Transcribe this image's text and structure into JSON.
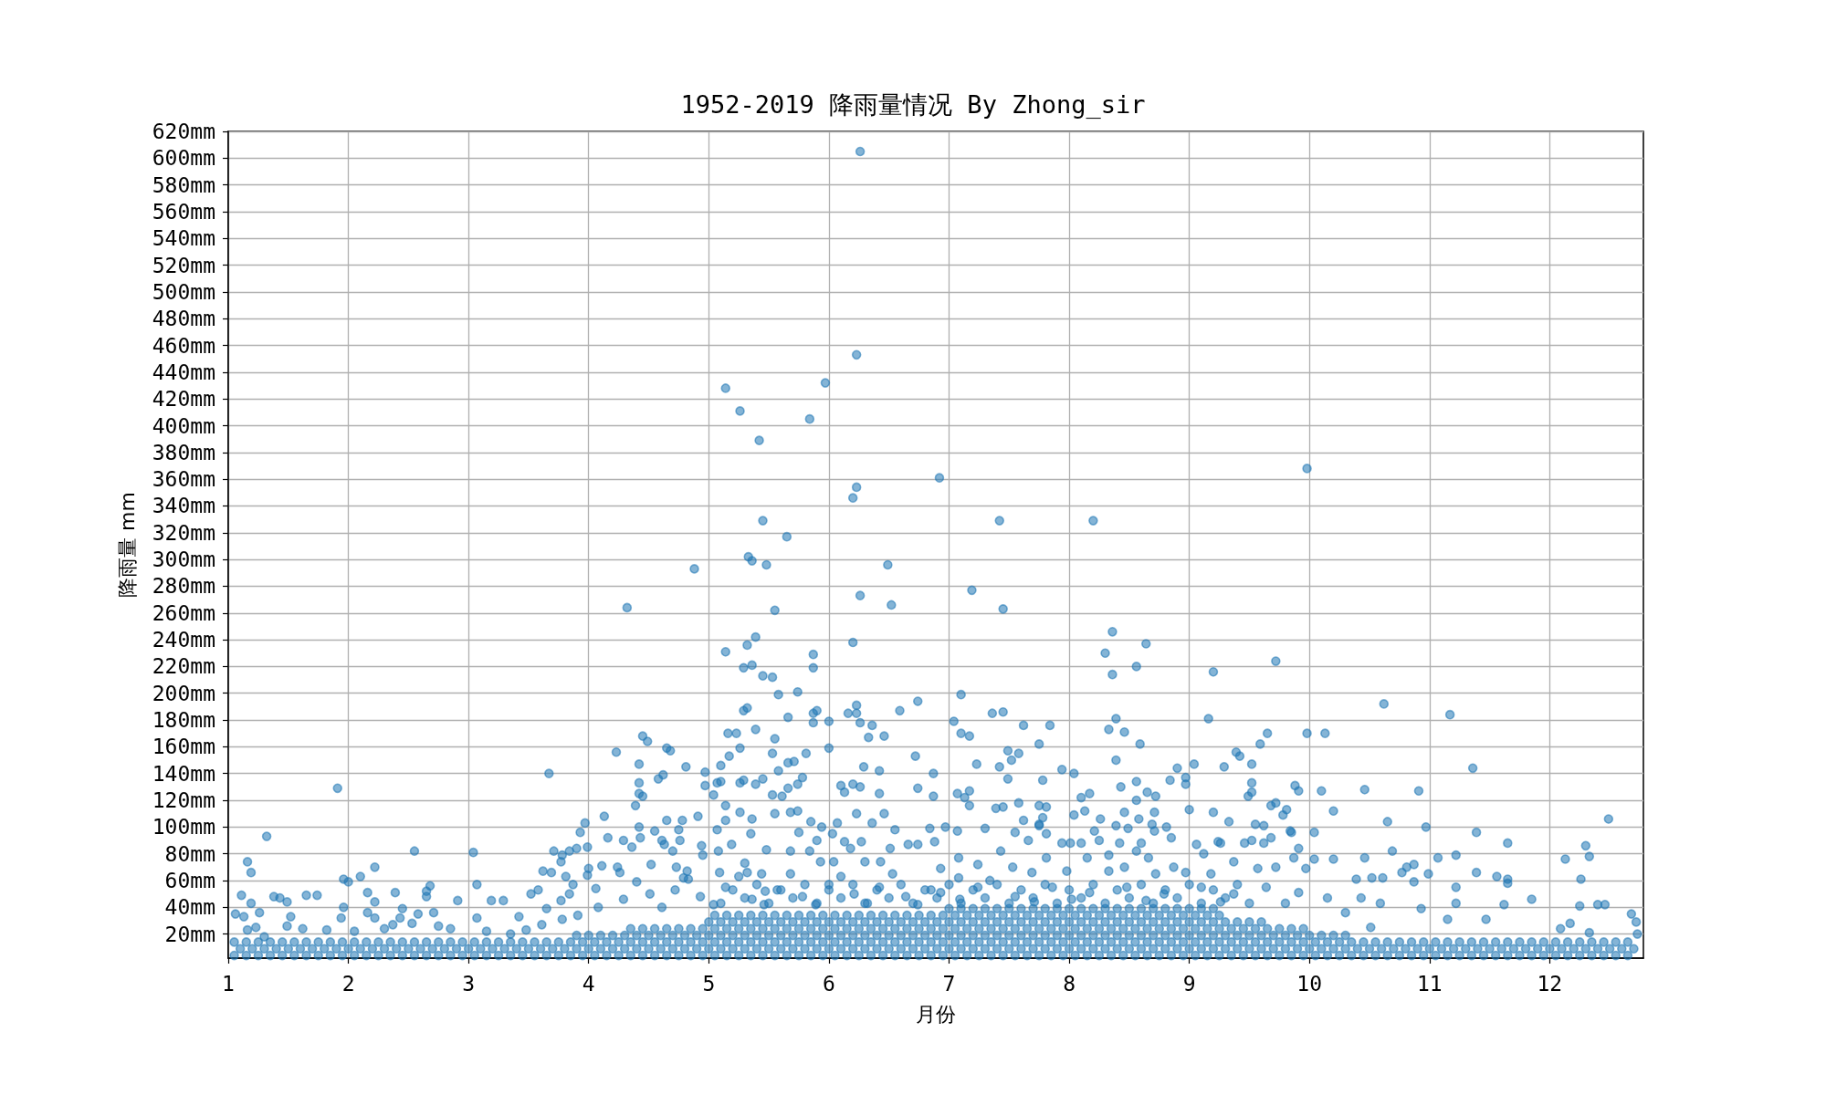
{
  "chart_data": {
    "type": "scatter",
    "title": "1952-2019 降雨量情况 By Zhong_sir",
    "xlabel": "月份",
    "ylabel": "降雨量 mm",
    "color": "#1f77b4",
    "marker": "circle",
    "grid": true,
    "xlim": [
      1,
      12.78
    ],
    "ylim": [
      2,
      620
    ],
    "xticks": [
      1,
      2,
      3,
      4,
      5,
      6,
      7,
      8,
      9,
      10,
      11,
      12
    ],
    "yticks": [
      {
        "value": 20,
        "label": "20mm"
      },
      {
        "value": 40,
        "label": "40mm"
      },
      {
        "value": 60,
        "label": "60mm"
      },
      {
        "value": 80,
        "label": "80mm"
      },
      {
        "value": 100,
        "label": "100mm"
      },
      {
        "value": 120,
        "label": "120mm"
      },
      {
        "value": 140,
        "label": "140mm"
      },
      {
        "value": 160,
        "label": "160mm"
      },
      {
        "value": 180,
        "label": "180mm"
      },
      {
        "value": 200,
        "label": "200mm"
      },
      {
        "value": 220,
        "label": "220mm"
      },
      {
        "value": 240,
        "label": "240mm"
      },
      {
        "value": 260,
        "label": "260mm"
      },
      {
        "value": 280,
        "label": "280mm"
      },
      {
        "value": 300,
        "label": "300mm"
      },
      {
        "value": 320,
        "label": "320mm"
      },
      {
        "value": 340,
        "label": "340mm"
      },
      {
        "value": 360,
        "label": "360mm"
      },
      {
        "value": 380,
        "label": "380mm"
      },
      {
        "value": 400,
        "label": "400mm"
      },
      {
        "value": 420,
        "label": "420mm"
      },
      {
        "value": 440,
        "label": "440mm"
      },
      {
        "value": 460,
        "label": "460mm"
      },
      {
        "value": 480,
        "label": "480mm"
      },
      {
        "value": 500,
        "label": "500mm"
      },
      {
        "value": 520,
        "label": "520mm"
      },
      {
        "value": 540,
        "label": "540mm"
      },
      {
        "value": 560,
        "label": "560mm"
      },
      {
        "value": 580,
        "label": "580mm"
      },
      {
        "value": 600,
        "label": "600mm"
      },
      {
        "value": 620,
        "label": "620mm"
      }
    ],
    "x": [
      6.26,
      6.23,
      5.14,
      5.97,
      5.26,
      5.84,
      5.42,
      6.92,
      6.23,
      6.2,
      5.45,
      5.65,
      7.42,
      8.2,
      9.98,
      5.33,
      5.36,
      5.48,
      4.88,
      6.49,
      4.32,
      5.55,
      6.26,
      6.52,
      5.39,
      5.32,
      5.14,
      6.2,
      5.29,
      5.36,
      5.87,
      5.87,
      5.45,
      5.53,
      5.58,
      5.74,
      5.29,
      5.32,
      5.66,
      5.87,
      5.9,
      6.0,
      6.23,
      6.23,
      6.16,
      6.26,
      6.36,
      6.33,
      6.46,
      6.59,
      6.74,
      6.72,
      6.87,
      6.74,
      6.87,
      6.42,
      6.42,
      6.46,
      6.23,
      6.29,
      6.26,
      6.2,
      6.1,
      6.13,
      6.0,
      5.87,
      5.81,
      5.78,
      5.74,
      5.71,
      5.66,
      5.58,
      5.66,
      5.55,
      5.53,
      5.39,
      5.26,
      5.16,
      5.23,
      5.17,
      5.1,
      4.97,
      4.97,
      4.81,
      5.1,
      5.07,
      5.26,
      5.29,
      5.39,
      5.45,
      5.53,
      5.61,
      5.04,
      4.65,
      4.68,
      4.45,
      4.49,
      4.23,
      4.42,
      4.62,
      4.58,
      4.42,
      4.42,
      4.45,
      4.39,
      4.13,
      3.97,
      3.93,
      3.67,
      1.91,
      1.32,
      4.42,
      4.65,
      4.78,
      4.91,
      4.75,
      5.14,
      5.14,
      5.26,
      5.36,
      5.55,
      5.68,
      5.74,
      5.85,
      5.94,
      6.07,
      6.36,
      6.55,
      6.84,
      7.19,
      7.45,
      8.36,
      8.64,
      8.3,
      8.36,
      8.56,
      9.2,
      9.72,
      7.1,
      7.04,
      7.36,
      7.45,
      7.62,
      7.84,
      7.1,
      7.17,
      7.75,
      8.39,
      8.33,
      8.46,
      8.59,
      9.16,
      9.65,
      9.98,
      10.13,
      9.59,
      9.39,
      9.42,
      7.49,
      7.58,
      7.52,
      7.23,
      7.42,
      7.49,
      7.78,
      7.94,
      8.04,
      8.39,
      8.56,
      8.43,
      8.65,
      8.72,
      8.9,
      9.04,
      8.97,
      8.84,
      8.97,
      9.29,
      9.52,
      9.52,
      9.52,
      9.49,
      9.88,
      9.91,
      10.1,
      10.46,
      10.91,
      11.36,
      10.62,
      11.17,
      12.49,
      10.65,
      10.97,
      11.39,
      10.2,
      9.72,
      9.68,
      9.81,
      9.78,
      9.55,
      9.62,
      9.85,
      10.04,
      9.33,
      9.2,
      9.0,
      8.71,
      8.58,
      8.69,
      8.81,
      8.49,
      8.39,
      8.56,
      8.46,
      8.26,
      8.17,
      8.1,
      8.13,
      8.04,
      7.81,
      7.75,
      7.78,
      7.75,
      7.62,
      7.58,
      7.45,
      7.39,
      7.17,
      7.07,
      7.17,
      7.13,
      7.3,
      7.55,
      7.81,
      6.97,
      1.16,
      1.19,
      1.11,
      1.06,
      1.13,
      1.19,
      1.26,
      1.16,
      1.23,
      1.38,
      1.43,
      1.49,
      1.52,
      1.49,
      1.65,
      1.74,
      1.62,
      1.94,
      1.96,
      2.0,
      2.1,
      2.22,
      1.96,
      2.16,
      2.22,
      2.16,
      2.22,
      2.39,
      2.45,
      2.43,
      2.55,
      2.65,
      2.68,
      2.65,
      2.71,
      2.58,
      2.91,
      3.04,
      3.07,
      3.07,
      3.19,
      3.29,
      3.42,
      3.52,
      3.58,
      3.62,
      3.69,
      3.71,
      3.78,
      3.81,
      3.77,
      3.84,
      3.9,
      3.87,
      3.99,
      3.99,
      4.0,
      3.84,
      3.77,
      3.65,
      4.06,
      4.16,
      4.11,
      4.24,
      4.26,
      4.29,
      4.36,
      4.43,
      4.52,
      4.55,
      4.61,
      4.63,
      4.7,
      4.76,
      4.73,
      4.79,
      4.82,
      4.94,
      4.95,
      5.08,
      5.07,
      5.09,
      5.19,
      5.3,
      5.32,
      5.35,
      5.48,
      5.44,
      5.47,
      5.68,
      5.75,
      5.84,
      5.9,
      5.93,
      6.03,
      6.04,
      6.13,
      6.18,
      6.27,
      6.3,
      6.43,
      6.51,
      6.66,
      6.74,
      6.88,
      4.08,
      4.29,
      4.51,
      4.72,
      4.93,
      5.14,
      5.36,
      5.57,
      5.78,
      6.0,
      6.21,
      6.42,
      6.64,
      6.85,
      4.4,
      4.83,
      5.25,
      5.68,
      6.1,
      6.53,
      4.61,
      5.04,
      5.46,
      5.89,
      6.32,
      6.74,
      3.61,
      3.78,
      3.91,
      3.48,
      11.65,
      12.3,
      12.33,
      12.13,
      11.07,
      11.22,
      10.69,
      10.46,
      10.2,
      10.04,
      10.81,
      10.87,
      10.77,
      10.99,
      11.39,
      11.56,
      11.65,
      11.22,
      11.85,
      11.65,
      10.39,
      10.52,
      10.61,
      10.87,
      10.93,
      11.22,
      11.62,
      12.26,
      12.25,
      12.4,
      12.46,
      12.68,
      12.72,
      12.73,
      12.09,
      12.17,
      12.33,
      11.47,
      11.15,
      10.43,
      10.59,
      10.51,
      10.3,
      10.15,
      7.07,
      7.66,
      7.75,
      7.94,
      8.01,
      8.1,
      8.21,
      8.25,
      8.42,
      8.6,
      8.71,
      8.85,
      9.06,
      9.26,
      9.46,
      9.52,
      9.62,
      9.68,
      9.84,
      9.91,
      7.43,
      7.24,
      7.08,
      6.93,
      7.53,
      7.81,
      7.69,
      7.98,
      8.15,
      8.33,
      8.46,
      8.56,
      8.66,
      8.87,
      8.97,
      9.12,
      9.24,
      9.37,
      9.57,
      9.72,
      9.87,
      9.97,
      9.18,
      8.72,
      8.33,
      7.34,
      7.08,
      6.93,
      7.24,
      7.55,
      7.86,
      8.17,
      8.48,
      8.79,
      9.1,
      9.37,
      9.64,
      9.91,
      7.09,
      7.71,
      8.02,
      8.64,
      9.26,
      9.8,
      1.82,
      2.05,
      2.3,
      2.75,
      2.85,
      3.15,
      3.35,
      2.53,
      2.37,
      1.3,
      5.1,
      5.3,
      5.5,
      5.7,
      5.9,
      6.1,
      6.3,
      6.5,
      6.7,
      6.9,
      7.1,
      7.3,
      7.5,
      7.7,
      7.9,
      8.1,
      8.3,
      8.5,
      8.7,
      8.9,
      9.1,
      9.3,
      9.5,
      5.2,
      5.4,
      5.6,
      5.8,
      6.0,
      6.2,
      6.4,
      6.6,
      6.8,
      7.0,
      7.2,
      7.4,
      7.6,
      7.8,
      8.0,
      8.2,
      8.4,
      8.6,
      8.8,
      9.0,
      9.2,
      9.4,
      1.05,
      1.15,
      1.25,
      1.35,
      1.45,
      1.55,
      1.65,
      1.75,
      1.85,
      1.95,
      2.05,
      2.15,
      2.25,
      2.35,
      2.45,
      2.55,
      2.65,
      2.75,
      2.85,
      2.95,
      3.05,
      3.15,
      3.25,
      3.35,
      3.45,
      3.55,
      3.65,
      3.75,
      3.85,
      3.95,
      4.05,
      4.15,
      4.25,
      4.35,
      4.45,
      4.55,
      4.65,
      4.75,
      4.85,
      4.95,
      5.05,
      5.15,
      5.25,
      5.35,
      5.45,
      5.55,
      5.65,
      5.75,
      5.85,
      5.95,
      6.05,
      6.15,
      6.25,
      6.35,
      6.45,
      6.55,
      6.65,
      6.75,
      6.85,
      6.95,
      7.05,
      7.15,
      7.25,
      7.35,
      7.45,
      7.55,
      7.65,
      7.75,
      7.85,
      7.95,
      8.05,
      8.15,
      8.25,
      8.35,
      8.45,
      8.55,
      8.65,
      8.75,
      8.85,
      8.95,
      9.05,
      9.15,
      9.25,
      9.35,
      9.45,
      9.55,
      9.65,
      9.75,
      9.85,
      9.95,
      10.05,
      10.15,
      10.25,
      10.35,
      10.45,
      10.55,
      10.65,
      10.75,
      10.85,
      10.95,
      11.05,
      11.15,
      11.25,
      11.35,
      11.45,
      11.55,
      11.65,
      11.75,
      11.85,
      11.95,
      12.05,
      12.15,
      12.25,
      12.35,
      12.45,
      12.55,
      12.65,
      1.1,
      1.2,
      1.3,
      1.4,
      1.5,
      1.6,
      1.7,
      1.8,
      1.9,
      2.0,
      2.1,
      2.2,
      2.3,
      2.4,
      2.5,
      2.6,
      2.7,
      2.8,
      2.9,
      3.0,
      3.1,
      3.2,
      3.3,
      3.4,
      3.5,
      3.6,
      3.7,
      3.8,
      3.9,
      4.0,
      4.1,
      4.2,
      4.3,
      4.4,
      4.5,
      4.6,
      4.7,
      4.8,
      4.9,
      5.0,
      5.1,
      5.2,
      5.3,
      5.4,
      5.5,
      5.6,
      5.7,
      5.8,
      5.9,
      6.0,
      6.1,
      6.2,
      6.3,
      6.4,
      6.5,
      6.6,
      6.7,
      6.8,
      6.9,
      7.0,
      7.1,
      7.2,
      7.3,
      7.4,
      7.5,
      7.6,
      7.7,
      7.8,
      7.9,
      8.0,
      8.1,
      8.2,
      8.3,
      8.4,
      8.5,
      8.6,
      8.7,
      8.8,
      8.9,
      9.0,
      9.1,
      9.2,
      9.3,
      9.4,
      9.5,
      9.6,
      9.7,
      9.8,
      9.9,
      10.0,
      10.1,
      10.2,
      10.3,
      10.4,
      10.5,
      10.6,
      10.7,
      10.8,
      10.9,
      11.0,
      11.1,
      11.2,
      11.3,
      11.4,
      11.5,
      11.6,
      11.7,
      11.8,
      11.9,
      12.0,
      12.1,
      12.2,
      12.3,
      12.4,
      12.5,
      12.6,
      12.7,
      1.05,
      1.15,
      1.25,
      1.35,
      1.45,
      1.55,
      1.65,
      1.75,
      1.85,
      1.95,
      2.05,
      2.15,
      2.25,
      2.35,
      2.45,
      2.55,
      2.65,
      2.75,
      2.85,
      2.95,
      3.05,
      3.15,
      3.25,
      3.35,
      3.45,
      3.55,
      3.65,
      3.75,
      3.85,
      3.95,
      4.05,
      4.15,
      4.25,
      4.35,
      4.45,
      4.55,
      4.65,
      4.75,
      4.85,
      4.95,
      5.05,
      5.15,
      5.25,
      5.35,
      5.45,
      5.55,
      5.65,
      5.75,
      5.85,
      5.95,
      6.05,
      6.15,
      6.25,
      6.35,
      6.45,
      6.55,
      6.65,
      6.75,
      6.85,
      6.95,
      7.05,
      7.15,
      7.25,
      7.35,
      7.45,
      7.55,
      7.65,
      7.75,
      7.85,
      7.95,
      8.05,
      8.15,
      8.25,
      8.35,
      8.45,
      8.55,
      8.65,
      8.75,
      8.85,
      8.95,
      9.05,
      9.15,
      9.25,
      9.35,
      9.45,
      9.55,
      9.65,
      9.75,
      9.85,
      9.95,
      10.05,
      10.15,
      10.25,
      10.35,
      10.45,
      10.55,
      10.65,
      10.75,
      10.85,
      10.95,
      11.05,
      11.15,
      11.25,
      11.35,
      11.45,
      11.55,
      11.65,
      11.75,
      11.85,
      11.95,
      12.05,
      12.15,
      12.25,
      12.35,
      12.45,
      12.55,
      12.65,
      3.9,
      4.0,
      4.1,
      4.2,
      4.3,
      4.4,
      4.5,
      4.6,
      4.7,
      4.8,
      4.9,
      5.0,
      5.1,
      5.2,
      5.3,
      5.4,
      5.5,
      5.6,
      5.7,
      5.8,
      5.9,
      6.0,
      6.1,
      6.2,
      6.3,
      6.4,
      6.5,
      6.6,
      6.7,
      6.8,
      6.9,
      7.0,
      7.1,
      7.2,
      7.3,
      7.4,
      7.5,
      7.6,
      7.7,
      7.8,
      7.9,
      8.0,
      8.1,
      8.2,
      8.3,
      8.4,
      8.5,
      8.6,
      8.7,
      8.8,
      8.9,
      9.0,
      9.1,
      9.2,
      9.3,
      9.4,
      9.5,
      9.6,
      9.7,
      9.8,
      9.9,
      10.0,
      10.1,
      10.2,
      10.3,
      4.35,
      4.45,
      4.55,
      4.65,
      4.75,
      4.85,
      4.95,
      5.05,
      5.15,
      5.25,
      5.35,
      5.45,
      5.55,
      5.65,
      5.75,
      5.85,
      5.95,
      6.05,
      6.15,
      6.25,
      6.35,
      6.45,
      6.55,
      6.65,
      6.75,
      6.85,
      6.95,
      7.05,
      7.15,
      7.25,
      7.35,
      7.45,
      7.55,
      7.65,
      7.75,
      7.85,
      7.95,
      8.05,
      8.15,
      8.25,
      8.35,
      8.45,
      8.55,
      8.65,
      8.75,
      8.85,
      8.95,
      9.05,
      9.15,
      9.25,
      9.35,
      9.45,
      9.55,
      9.65,
      9.75,
      9.85,
      9.95,
      5.0,
      5.1,
      5.2,
      5.3,
      5.4,
      5.5,
      5.6,
      5.7,
      5.8,
      5.9,
      6.0,
      6.1,
      6.2,
      6.3,
      6.4,
      6.5,
      6.6,
      6.7,
      6.8,
      6.9,
      7.0,
      7.1,
      7.2,
      7.3,
      7.4,
      7.5,
      7.6,
      7.7,
      7.8,
      7.9,
      8.0,
      8.1,
      8.2,
      8.3,
      8.4,
      8.5,
      8.6,
      8.7,
      8.8,
      8.9,
      9.0,
      9.1,
      9.2,
      9.3,
      9.4,
      9.5,
      9.6,
      5.05,
      5.15,
      5.25,
      5.35,
      5.45,
      5.55,
      5.65,
      5.75,
      5.85,
      5.95,
      6.05,
      6.15,
      6.25,
      6.35,
      6.45,
      6.55,
      6.65,
      6.75,
      6.85,
      6.95,
      7.05,
      7.15,
      7.25,
      7.35,
      7.45,
      7.55,
      7.65,
      7.75,
      7.85,
      7.95,
      8.05,
      8.15,
      8.25,
      8.35,
      8.45,
      8.55,
      8.65,
      8.75,
      8.85,
      8.95,
      9.05,
      9.15,
      9.25,
      7.0,
      7.1,
      7.2,
      7.3,
      7.4,
      7.5,
      7.6,
      7.7,
      7.8,
      7.9,
      8.0,
      8.1,
      8.2,
      8.3,
      8.4,
      8.5,
      8.6,
      8.7,
      8.8,
      8.9,
      9.0,
      9.1,
      9.2
    ],
    "values": [
      605,
      453,
      428,
      432,
      411,
      405,
      389,
      361,
      354,
      346,
      329,
      317,
      329,
      329,
      368,
      302,
      299,
      296,
      293,
      296,
      264,
      262,
      273,
      266,
      242,
      236,
      231,
      238,
      219,
      221,
      229,
      219,
      213,
      212,
      199,
      201,
      187,
      189,
      182,
      185,
      187,
      179,
      191,
      185,
      185,
      178,
      176,
      167,
      168,
      187,
      194,
      153,
      140,
      129,
      123,
      142,
      125,
      110,
      110,
      145,
      130,
      132,
      131,
      126,
      159,
      178,
      155,
      137,
      132,
      149,
      148,
      142,
      129,
      166,
      155,
      173,
      159,
      170,
      170,
      153,
      146,
      141,
      131,
      145,
      134,
      133,
      133,
      135,
      132,
      136,
      124,
      123,
      124,
      159,
      157,
      168,
      164,
      156,
      147,
      139,
      136,
      133,
      125,
      123,
      116,
      108,
      103,
      96,
      140,
      129,
      93,
      100,
      105,
      105,
      108,
      98,
      116,
      105,
      111,
      106,
      110,
      111,
      112,
      104,
      100,
      103,
      103,
      98,
      99,
      277,
      263,
      246,
      237,
      230,
      214,
      220,
      216,
      224,
      199,
      179,
      185,
      186,
      176,
      176,
      170,
      168,
      162,
      181,
      173,
      171,
      162,
      181,
      170,
      170,
      170,
      162,
      156,
      153,
      157,
      155,
      150,
      147,
      145,
      136,
      135,
      143,
      140,
      150,
      134,
      130,
      126,
      123,
      144,
      147,
      137,
      135,
      132,
      145,
      147,
      133,
      126,
      123,
      131,
      127,
      127,
      128,
      127,
      144,
      192,
      184,
      106,
      104,
      100,
      96,
      112,
      118,
      116,
      113,
      109,
      102,
      101,
      96,
      96,
      104,
      111,
      113,
      111,
      106,
      102,
      100,
      99,
      101,
      120,
      111,
      106,
      125,
      122,
      112,
      109,
      115,
      116,
      107,
      101,
      105,
      118,
      115,
      114,
      127,
      125,
      116,
      122,
      99,
      96,
      95,
      100,
      74,
      66,
      49,
      35,
      33,
      43,
      36,
      23,
      25,
      48,
      47,
      44,
      33,
      26,
      49,
      49,
      24,
      32,
      61,
      59,
      63,
      70,
      40,
      51,
      44,
      36,
      32,
      51,
      39,
      32,
      82,
      52,
      56,
      48,
      36,
      35,
      45,
      81,
      57,
      32,
      45,
      45,
      33,
      50,
      53,
      67,
      66,
      82,
      79,
      63,
      74,
      82,
      84,
      57,
      85,
      64,
      69,
      50,
      45,
      39,
      54,
      92,
      71,
      70,
      66,
      90,
      85,
      92,
      72,
      97,
      90,
      87,
      82,
      90,
      70,
      62,
      67,
      86,
      79,
      82,
      98,
      66,
      87,
      73,
      66,
      95,
      83,
      65,
      52,
      82,
      96,
      82,
      90,
      74,
      95,
      74,
      89,
      84,
      89,
      74,
      74,
      84,
      87,
      87,
      89,
      40,
      46,
      50,
      53,
      48,
      55,
      46,
      53,
      48,
      57,
      50,
      55,
      48,
      53,
      59,
      61,
      63,
      65,
      63,
      65,
      40,
      42,
      42,
      42,
      43,
      42,
      27,
      31,
      34,
      23,
      88,
      86,
      78,
      76,
      77,
      79,
      82,
      77,
      76,
      76,
      70,
      72,
      66,
      65,
      66,
      63,
      58,
      55,
      46,
      61,
      61,
      62,
      62,
      59,
      39,
      43,
      42,
      61,
      41,
      42,
      42,
      35,
      29,
      20,
      24,
      28,
      21,
      31,
      31,
      47,
      43,
      25,
      36,
      47,
      97,
      90,
      102,
      88,
      88,
      88,
      97,
      90,
      88,
      88,
      97,
      92,
      87,
      88,
      88,
      90,
      88,
      92,
      97,
      84,
      82,
      72,
      77,
      69,
      70,
      77,
      66,
      67,
      77,
      79,
      70,
      82,
      77,
      70,
      66,
      80,
      89,
      74,
      69,
      70,
      77,
      69,
      65,
      65,
      67,
      60,
      62,
      51,
      55,
      48,
      55,
      51,
      55,
      50,
      55,
      50,
      55,
      51,
      46,
      44,
      46,
      45,
      44,
      43,
      23,
      22,
      24,
      26,
      24,
      22,
      20,
      28,
      27,
      18,
      43,
      47,
      43,
      47,
      43,
      47,
      43,
      47,
      43,
      47,
      43,
      47,
      43,
      47,
      43,
      47,
      43,
      47,
      43,
      47,
      43,
      47,
      43,
      53,
      57,
      53,
      57,
      53,
      57,
      53,
      57,
      53,
      57,
      53,
      57,
      53,
      57,
      53,
      57,
      53,
      57,
      53,
      57,
      53,
      57,
      4,
      4,
      4,
      4,
      4,
      4,
      4,
      4,
      4,
      4,
      4,
      4,
      4,
      4,
      4,
      4,
      4,
      4,
      4,
      4,
      4,
      4,
      4,
      4,
      4,
      4,
      4,
      4,
      4,
      4,
      4,
      4,
      4,
      4,
      4,
      4,
      4,
      4,
      4,
      4,
      4,
      4,
      4,
      4,
      4,
      4,
      4,
      4,
      4,
      4,
      4,
      4,
      4,
      4,
      4,
      4,
      4,
      4,
      4,
      4,
      4,
      4,
      4,
      4,
      4,
      4,
      4,
      4,
      4,
      4,
      4,
      4,
      4,
      4,
      4,
      4,
      4,
      4,
      4,
      4,
      4,
      4,
      4,
      4,
      4,
      4,
      4,
      4,
      4,
      4,
      4,
      4,
      4,
      4,
      4,
      4,
      4,
      4,
      4,
      4,
      4,
      4,
      4,
      4,
      4,
      4,
      4,
      4,
      4,
      4,
      4,
      4,
      4,
      4,
      4,
      4,
      4,
      9,
      9,
      9,
      9,
      9,
      9,
      9,
      9,
      9,
      9,
      9,
      9,
      9,
      9,
      9,
      9,
      9,
      9,
      9,
      9,
      9,
      9,
      9,
      9,
      9,
      9,
      9,
      9,
      9,
      9,
      9,
      9,
      9,
      9,
      9,
      9,
      9,
      9,
      9,
      9,
      9,
      9,
      9,
      9,
      9,
      9,
      9,
      9,
      9,
      9,
      9,
      9,
      9,
      9,
      9,
      9,
      9,
      9,
      9,
      9,
      9,
      9,
      9,
      9,
      9,
      9,
      9,
      9,
      9,
      9,
      9,
      9,
      9,
      9,
      9,
      9,
      9,
      9,
      9,
      9,
      9,
      9,
      9,
      9,
      9,
      9,
      9,
      9,
      9,
      9,
      9,
      9,
      9,
      9,
      9,
      9,
      9,
      9,
      9,
      9,
      9,
      9,
      9,
      9,
      9,
      9,
      9,
      9,
      9,
      9,
      9,
      9,
      9,
      9,
      9,
      9,
      9,
      14,
      14,
      14,
      14,
      14,
      14,
      14,
      14,
      14,
      14,
      14,
      14,
      14,
      14,
      14,
      14,
      14,
      14,
      14,
      14,
      14,
      14,
      14,
      14,
      14,
      14,
      14,
      14,
      14,
      14,
      14,
      14,
      14,
      14,
      14,
      14,
      14,
      14,
      14,
      14,
      14,
      14,
      14,
      14,
      14,
      14,
      14,
      14,
      14,
      14,
      14,
      14,
      14,
      14,
      14,
      14,
      14,
      14,
      14,
      14,
      14,
      14,
      14,
      14,
      14,
      14,
      14,
      14,
      14,
      14,
      14,
      14,
      14,
      14,
      14,
      14,
      14,
      14,
      14,
      14,
      14,
      14,
      14,
      14,
      14,
      14,
      14,
      14,
      14,
      14,
      14,
      14,
      14,
      14,
      14,
      14,
      14,
      14,
      14,
      14,
      14,
      14,
      14,
      14,
      14,
      14,
      14,
      14,
      14,
      14,
      14,
      14,
      14,
      14,
      14,
      14,
      14,
      19,
      19,
      19,
      19,
      19,
      19,
      19,
      19,
      19,
      19,
      19,
      19,
      19,
      19,
      19,
      19,
      19,
      19,
      19,
      19,
      19,
      19,
      19,
      19,
      19,
      19,
      19,
      19,
      19,
      19,
      19,
      19,
      19,
      19,
      19,
      19,
      19,
      19,
      19,
      19,
      19,
      19,
      19,
      19,
      19,
      19,
      19,
      19,
      19,
      19,
      19,
      19,
      19,
      19,
      19,
      19,
      19,
      19,
      19,
      19,
      19,
      19,
      19,
      19,
      19,
      24,
      24,
      24,
      24,
      24,
      24,
      24,
      24,
      24,
      24,
      24,
      24,
      24,
      24,
      24,
      24,
      24,
      24,
      24,
      24,
      24,
      24,
      24,
      24,
      24,
      24,
      24,
      24,
      24,
      24,
      24,
      24,
      24,
      24,
      24,
      24,
      24,
      24,
      24,
      24,
      24,
      24,
      24,
      24,
      24,
      24,
      24,
      24,
      24,
      24,
      24,
      24,
      24,
      24,
      24,
      24,
      24,
      29,
      29,
      29,
      29,
      29,
      29,
      29,
      29,
      29,
      29,
      29,
      29,
      29,
      29,
      29,
      29,
      29,
      29,
      29,
      29,
      29,
      29,
      29,
      29,
      29,
      29,
      29,
      29,
      29,
      29,
      29,
      29,
      29,
      29,
      29,
      29,
      29,
      29,
      29,
      29,
      29,
      29,
      29,
      29,
      29,
      29,
      29,
      34,
      34,
      34,
      34,
      34,
      34,
      34,
      34,
      34,
      34,
      34,
      34,
      34,
      34,
      34,
      34,
      34,
      34,
      34,
      34,
      34,
      34,
      34,
      34,
      34,
      34,
      34,
      34,
      34,
      34,
      34,
      34,
      34,
      34,
      34,
      34,
      34,
      34,
      34,
      34,
      34,
      34,
      34,
      39,
      39,
      39,
      39,
      39,
      39,
      39,
      39,
      39,
      39,
      39,
      39,
      39,
      39,
      39,
      39,
      39,
      39,
      39,
      39,
      39,
      39,
      39
    ]
  }
}
